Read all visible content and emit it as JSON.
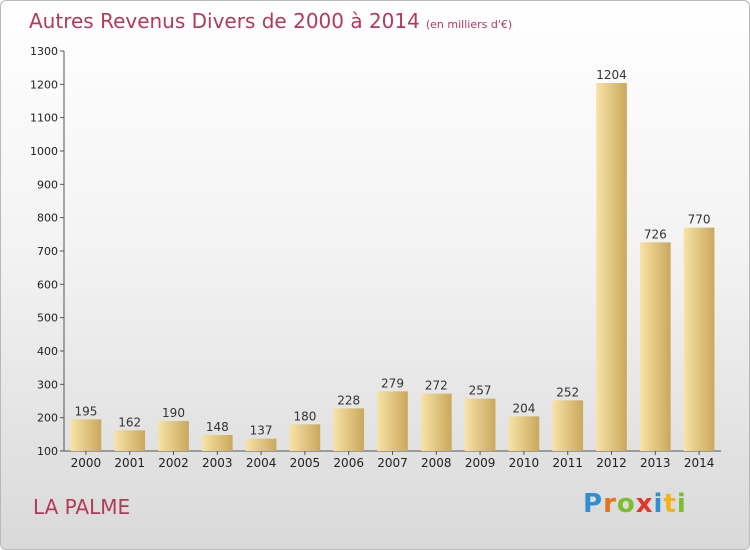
{
  "header": {
    "title": "Autres Revenus Divers de 2000 à 2014",
    "unit": "(en milliers d'€)"
  },
  "footer": {
    "location": "LA PALME",
    "logo_letters": [
      "P",
      "r",
      "o",
      "x",
      "i",
      "t",
      "i"
    ],
    "logo_colors": [
      "#2f8fd0",
      "#e9731c",
      "#7cbf2a",
      "#e5342a",
      "#2f8fd0",
      "#f2b21a",
      "#7cbf2a"
    ]
  },
  "chart_data": {
    "type": "bar",
    "title": "Autres Revenus Divers de 2000 à 2014",
    "xlabel": "",
    "ylabel": "",
    "categories": [
      "2000",
      "2001",
      "2002",
      "2003",
      "2004",
      "2005",
      "2006",
      "2007",
      "2008",
      "2009",
      "2010",
      "2011",
      "2012",
      "2013",
      "2014"
    ],
    "values": [
      195,
      162,
      190,
      148,
      137,
      180,
      228,
      279,
      272,
      257,
      204,
      252,
      1204,
      726,
      770
    ],
    "ylim": [
      100,
      1300
    ],
    "yticks": [
      100,
      200,
      300,
      400,
      500,
      600,
      700,
      800,
      900,
      1000,
      1100,
      1200,
      1300
    ],
    "grid": false,
    "bar_color_light": "#f8e3a6",
    "bar_color_dark": "#c9a85c"
  }
}
